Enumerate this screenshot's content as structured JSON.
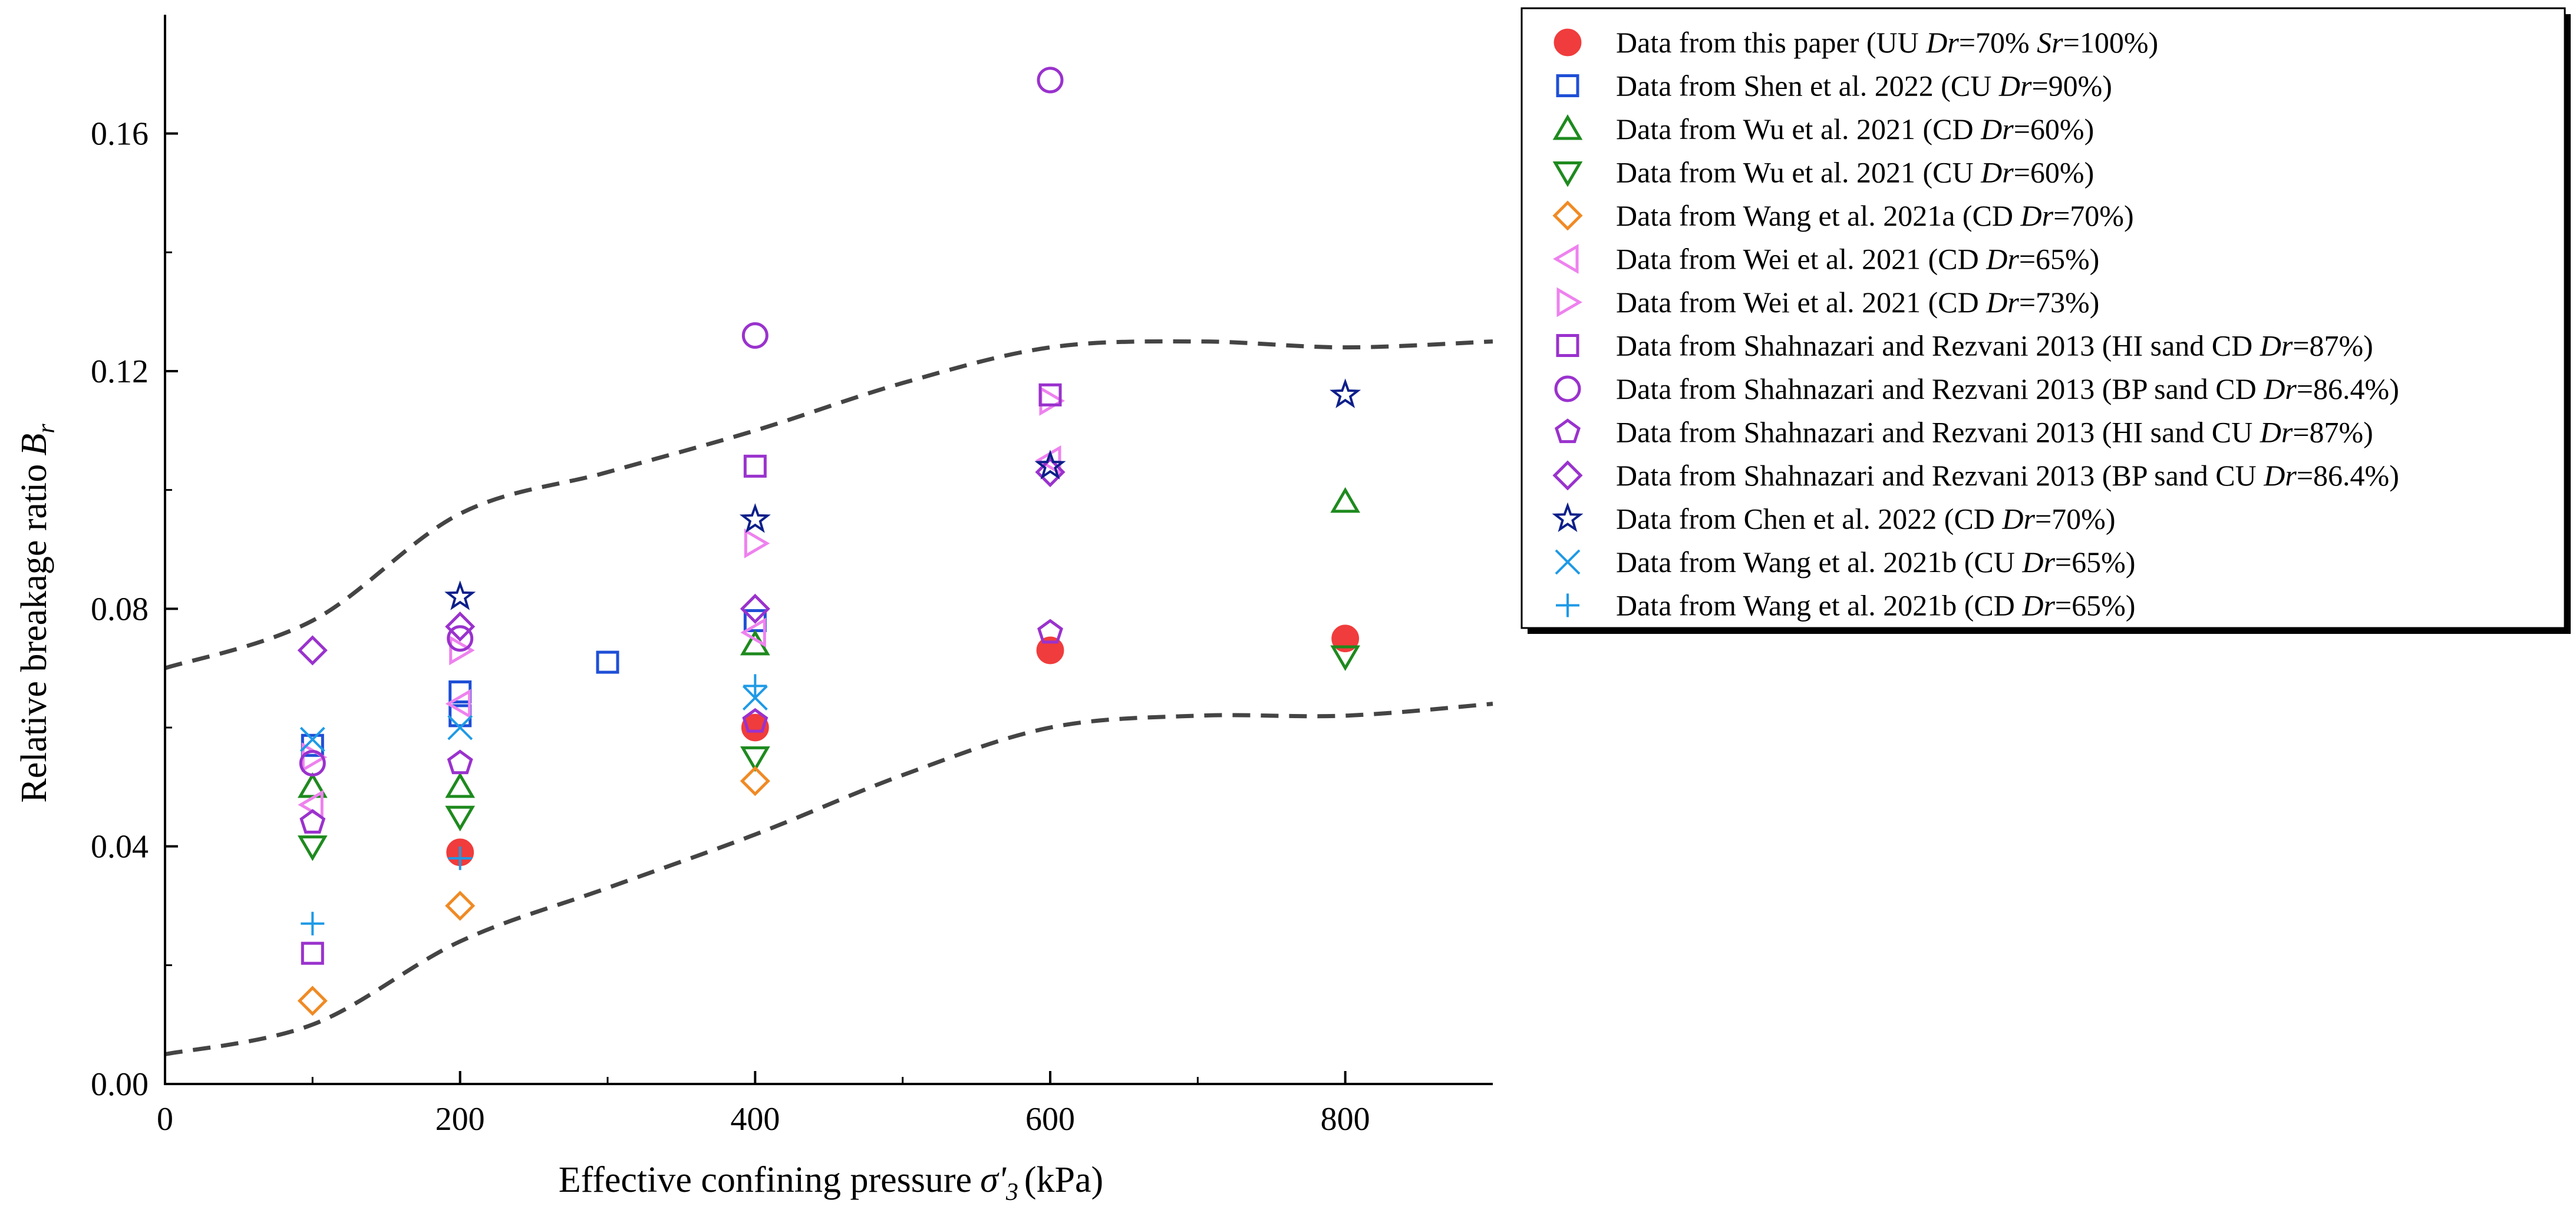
{
  "chart_data": {
    "type": "scatter",
    "xlabel": "Effective confining pressure",
    "xlabel_symbol": "σ'3",
    "xlabel_unit": "(kPa)",
    "ylabel": "Relative breakage ratio",
    "ylabel_symbol": "Br",
    "xlim": [
      0,
      900
    ],
    "ylim": [
      0,
      0.18
    ],
    "xticks": [
      0,
      200,
      400,
      600,
      800
    ],
    "yticks": [
      0.0,
      0.04,
      0.08,
      0.12,
      0.16
    ],
    "xtick_labels": [
      "0",
      "200",
      "400",
      "600",
      "800"
    ],
    "ytick_labels": [
      "0.00",
      "0.04",
      "0.08",
      "0.12",
      "0.16"
    ],
    "legend_position": "right, outside plot",
    "series": [
      {
        "name": "Data from this paper (UU Dr=70% Sr=100%)",
        "marker": "filled-circle",
        "color": "#f03c3c",
        "points": [
          [
            200,
            0.039
          ],
          [
            400,
            0.06
          ],
          [
            600,
            0.073
          ],
          [
            800,
            0.075
          ]
        ]
      },
      {
        "name": "Data from Shen et al. 2022 (CU Dr=90%)",
        "marker": "square",
        "color": "#1f4fd6",
        "points": [
          [
            100,
            0.057
          ],
          [
            200,
            0.066
          ],
          [
            200,
            0.062
          ],
          [
            300,
            0.071
          ],
          [
            400,
            0.078
          ]
        ]
      },
      {
        "name": "Data from Wu et al. 2021 (CD Dr=60%)",
        "marker": "triangle-up",
        "color": "#1e8a1e",
        "points": [
          [
            100,
            0.05
          ],
          [
            200,
            0.05
          ],
          [
            400,
            0.074
          ],
          [
            800,
            0.098
          ]
        ]
      },
      {
        "name": "Data from Wu et al. 2021 (CU Dr=60%)",
        "marker": "triangle-down",
        "color": "#1e8a1e",
        "points": [
          [
            100,
            0.04
          ],
          [
            200,
            0.045
          ],
          [
            400,
            0.055
          ],
          [
            800,
            0.072
          ]
        ]
      },
      {
        "name": "Data from Wang et al. 2021a (CD Dr=70%)",
        "marker": "diamond",
        "color": "#f08a24",
        "points": [
          [
            100,
            0.014
          ],
          [
            200,
            0.03
          ],
          [
            400,
            0.051
          ]
        ]
      },
      {
        "name": "Data from Wei et al. 2021 (CD Dr=65%)",
        "marker": "triangle-left",
        "color": "#ee82ee",
        "points": [
          [
            100,
            0.047
          ],
          [
            200,
            0.064
          ],
          [
            400,
            0.076
          ],
          [
            600,
            0.105
          ]
        ]
      },
      {
        "name": "Data from Wei et al. 2021 (CD Dr=73%)",
        "marker": "triangle-right",
        "color": "#ee82ee",
        "points": [
          [
            100,
            0.055
          ],
          [
            200,
            0.073
          ],
          [
            400,
            0.091
          ],
          [
            600,
            0.115
          ]
        ]
      },
      {
        "name": "Data from Shahnazari and Rezvani 2013 (HI sand CD Dr=87%)",
        "marker": "square",
        "color": "#9a32cd",
        "points": [
          [
            100,
            0.022
          ],
          [
            400,
            0.104
          ],
          [
            600,
            0.116
          ]
        ]
      },
      {
        "name": "Data from Shahnazari and Rezvani 2013 (BP sand CD Dr=86.4%)",
        "marker": "circle",
        "color": "#9a32cd",
        "points": [
          [
            100,
            0.054
          ],
          [
            200,
            0.075
          ],
          [
            400,
            0.126
          ],
          [
            600,
            0.169
          ]
        ]
      },
      {
        "name": "Data from Shahnazari and Rezvani 2013 (HI sand CU Dr=87%)",
        "marker": "pentagon",
        "color": "#9a32cd",
        "points": [
          [
            100,
            0.044
          ],
          [
            200,
            0.054
          ],
          [
            400,
            0.061
          ],
          [
            600,
            0.076
          ]
        ]
      },
      {
        "name": "Data from Shahnazari and Rezvani 2013 (BP sand CU Dr=86.4%)",
        "marker": "diamond",
        "color": "#9a32cd",
        "points": [
          [
            100,
            0.073
          ],
          [
            200,
            0.077
          ],
          [
            400,
            0.08
          ],
          [
            600,
            0.103
          ]
        ]
      },
      {
        "name": "Data from Chen et al. 2022 (CD Dr=70%)",
        "marker": "star",
        "color": "#0d1f8a",
        "points": [
          [
            200,
            0.082
          ],
          [
            400,
            0.095
          ],
          [
            600,
            0.104
          ],
          [
            800,
            0.116
          ]
        ]
      },
      {
        "name": "Data from Wang et al. 2021b (CU Dr=65%)",
        "marker": "x",
        "color": "#1e9ae6",
        "points": [
          [
            100,
            0.058
          ],
          [
            200,
            0.06
          ],
          [
            400,
            0.065
          ]
        ]
      },
      {
        "name": "Data from Wang et al. 2021b (CD Dr=65%)",
        "marker": "plus",
        "color": "#1e9ae6",
        "points": [
          [
            100,
            0.027
          ],
          [
            200,
            0.038
          ],
          [
            400,
            0.067
          ]
        ]
      }
    ],
    "legend_entries": [
      {
        "prefix": "Data from this paper (UU ",
        "var1": "Dr",
        "mid": "=70% ",
        "var2": "Sr",
        "suffix": "=100%)"
      },
      {
        "prefix": "Data from Shen et al. 2022 (CU ",
        "var1": "Dr",
        "mid": "=90%)"
      },
      {
        "prefix": "Data from Wu et al. 2021 (CD ",
        "var1": "Dr",
        "mid": "=60%)"
      },
      {
        "prefix": "Data from Wu et al. 2021 (CU ",
        "var1": "Dr",
        "mid": "=60%)"
      },
      {
        "prefix": "Data from Wang et al. 2021a (CD ",
        "var1": "Dr",
        "mid": "=70%)"
      },
      {
        "prefix": "Data from Wei et al. 2021 (CD ",
        "var1": "Dr",
        "mid": "=65%)"
      },
      {
        "prefix": "Data from Wei et al. 2021 (CD ",
        "var1": "Dr",
        "mid": "=73%)"
      },
      {
        "prefix": "Data from Shahnazari and Rezvani 2013 (HI sand CD ",
        "var1": "Dr",
        "mid": "=87%)"
      },
      {
        "prefix": "Data from Shahnazari and Rezvani 2013 (BP sand CD ",
        "var1": "Dr",
        "mid": "=86.4%)"
      },
      {
        "prefix": "Data from Shahnazari and Rezvani 2013 (HI sand CU ",
        "var1": "Dr",
        "mid": "=87%)"
      },
      {
        "prefix": "Data from Shahnazari and Rezvani 2013 (BP sand CU ",
        "var1": "Dr",
        "mid": "=86.4%)"
      },
      {
        "prefix": "Data from Chen et al. 2022 (CD ",
        "var1": "Dr",
        "mid": "=70%)"
      },
      {
        "prefix": "Data from Wang et al. 2021b (CU ",
        "var1": "Dr",
        "mid": "=65%)"
      },
      {
        "prefix": "Data from Wang et al. 2021b (CD ",
        "var1": "Dr",
        "mid": "=65%)"
      }
    ],
    "envelopes": [
      {
        "name": "upper-bound",
        "style": "dashed",
        "color": "#444444",
        "points": [
          [
            0,
            0.07
          ],
          [
            100,
            0.078
          ],
          [
            200,
            0.096
          ],
          [
            300,
            0.103
          ],
          [
            400,
            0.11
          ],
          [
            500,
            0.118
          ],
          [
            600,
            0.124
          ],
          [
            700,
            0.125
          ],
          [
            800,
            0.124
          ],
          [
            900,
            0.125
          ]
        ]
      },
      {
        "name": "lower-bound",
        "style": "dashed",
        "color": "#444444",
        "points": [
          [
            0,
            0.005
          ],
          [
            100,
            0.01
          ],
          [
            200,
            0.024
          ],
          [
            300,
            0.033
          ],
          [
            400,
            0.042
          ],
          [
            500,
            0.052
          ],
          [
            600,
            0.06
          ],
          [
            700,
            0.062
          ],
          [
            800,
            0.062
          ],
          [
            900,
            0.064
          ]
        ]
      }
    ]
  }
}
